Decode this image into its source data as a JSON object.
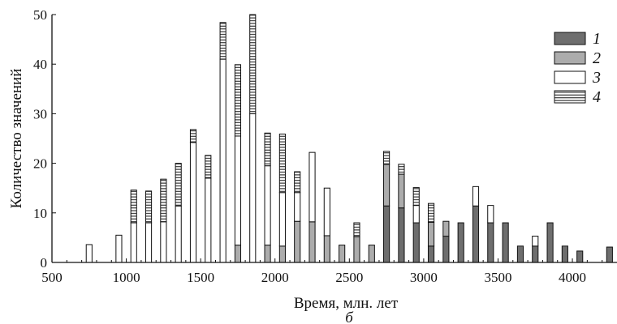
{
  "chart_data": {
    "type": "bar",
    "stacked": true,
    "xlabel": "Время, млн. лет",
    "ylabel": "Количество значений",
    "panel_label": "б",
    "xlim": [
      500,
      4300
    ],
    "ylim": [
      0,
      50
    ],
    "xticks": [
      500,
      1000,
      1500,
      2000,
      2500,
      3000,
      3500,
      4000
    ],
    "yticks": [
      0,
      10,
      20,
      30,
      40,
      50
    ],
    "bin_width": 50,
    "legend": {
      "placement": "top-right",
      "entries": [
        {
          "label": "1",
          "color": "#6e6e6e",
          "pattern": "solid"
        },
        {
          "label": "2",
          "color": "#acacac",
          "pattern": "solid"
        },
        {
          "label": "3",
          "color": "#ffffff",
          "pattern": "solid"
        },
        {
          "label": "4",
          "color": "#ffffff",
          "pattern": "hatch-horizontal"
        }
      ]
    },
    "x": [
      750,
      950,
      1050,
      1150,
      1250,
      1350,
      1450,
      1550,
      1650,
      1750,
      1850,
      1950,
      2050,
      2150,
      2250,
      2350,
      2450,
      2550,
      2650,
      2750,
      2850,
      2950,
      3050,
      3150,
      3250,
      3350,
      3450,
      3550,
      3650,
      3750,
      3850,
      3950,
      4050,
      4250
    ],
    "series": [
      {
        "name": "1",
        "values": [
          0,
          0,
          0,
          0,
          0,
          0,
          0,
          0,
          0,
          0,
          0,
          0,
          0,
          0,
          0,
          0,
          0,
          0,
          0,
          11.4,
          11,
          8,
          3.3,
          5.3,
          8,
          11.4,
          8,
          8,
          3.3,
          3.3,
          8,
          3.3,
          2.3,
          3.1
        ]
      },
      {
        "name": "2",
        "values": [
          0,
          0,
          0,
          0,
          0,
          0,
          0,
          0,
          0,
          3.5,
          0,
          3.5,
          3.3,
          8.3,
          8.2,
          5.4,
          3.5,
          5.2,
          3.5,
          8.4,
          6.8,
          0,
          4.8,
          3,
          0,
          0,
          0,
          0,
          0,
          0,
          0,
          0,
          0,
          0
        ]
      },
      {
        "name": "3",
        "values": [
          3.6,
          5.5,
          8,
          8,
          8.2,
          11.4,
          24.2,
          17,
          41,
          22,
          30,
          16,
          10.8,
          5.8,
          14,
          9.6,
          0,
          0,
          0,
          0,
          0,
          3.5,
          0,
          0,
          0,
          3.9,
          3.5,
          0,
          0,
          2,
          0,
          0,
          0,
          0
        ]
      },
      {
        "name": "4",
        "values": [
          0,
          0,
          6.6,
          6.4,
          8.6,
          8.6,
          2.6,
          4.6,
          7.4,
          14.4,
          20,
          6.6,
          11.8,
          4.2,
          0,
          0,
          0,
          2.8,
          0,
          2.6,
          2,
          3.6,
          3.8,
          0,
          0,
          0,
          0,
          0,
          0,
          0,
          0,
          0,
          0,
          0
        ]
      }
    ]
  }
}
